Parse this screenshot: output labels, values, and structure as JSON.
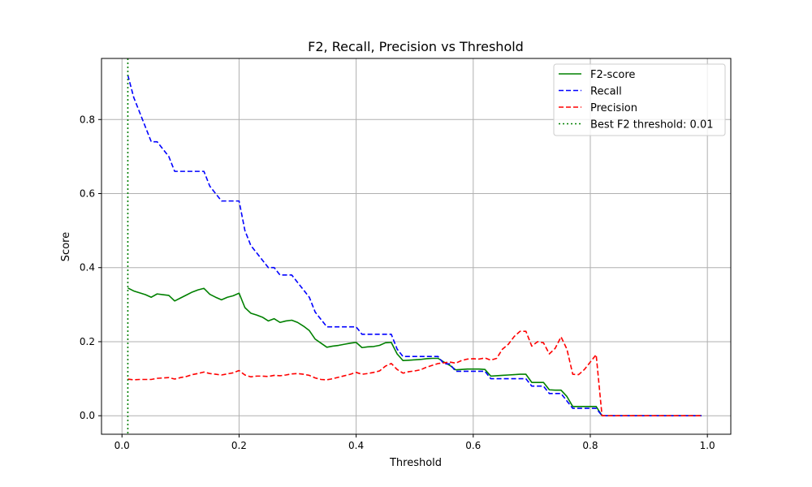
{
  "chart_data": {
    "type": "line",
    "title": "F2, Recall, Precision vs Threshold",
    "xlabel": "Threshold",
    "ylabel": "Score",
    "xlim": [
      -0.035,
      1.04
    ],
    "ylim": [
      -0.05,
      0.965
    ],
    "xticks": [
      0.0,
      0.2,
      0.4,
      0.6,
      0.8,
      1.0
    ],
    "xtick_labels": [
      "0.0",
      "0.2",
      "0.4",
      "0.6",
      "0.8",
      "1.0"
    ],
    "yticks": [
      0.0,
      0.2,
      0.4,
      0.6,
      0.8
    ],
    "ytick_labels": [
      "0.0",
      "0.2",
      "0.4",
      "0.6",
      "0.8"
    ],
    "grid": true,
    "legend_position": "top-right",
    "x": [
      0.01,
      0.02,
      0.03,
      0.04,
      0.05,
      0.06,
      0.07,
      0.08,
      0.09,
      0.1,
      0.11,
      0.12,
      0.13,
      0.14,
      0.15,
      0.16,
      0.17,
      0.18,
      0.19,
      0.2,
      0.21,
      0.22,
      0.23,
      0.24,
      0.25,
      0.26,
      0.27,
      0.28,
      0.29,
      0.3,
      0.31,
      0.32,
      0.33,
      0.34,
      0.35,
      0.36,
      0.37,
      0.38,
      0.39,
      0.4,
      0.41,
      0.42,
      0.43,
      0.44,
      0.45,
      0.46,
      0.47,
      0.48,
      0.49,
      0.5,
      0.51,
      0.52,
      0.53,
      0.54,
      0.55,
      0.56,
      0.57,
      0.58,
      0.59,
      0.6,
      0.61,
      0.62,
      0.63,
      0.64,
      0.65,
      0.66,
      0.67,
      0.68,
      0.69,
      0.7,
      0.71,
      0.72,
      0.73,
      0.74,
      0.75,
      0.76,
      0.77,
      0.78,
      0.79,
      0.8,
      0.81,
      0.82,
      0.83,
      0.84,
      0.85,
      0.86,
      0.87,
      0.88,
      0.89,
      0.9,
      0.91,
      0.92,
      0.93,
      0.94,
      0.95,
      0.96,
      0.97,
      0.98,
      0.99
    ],
    "series": [
      {
        "name": "F2-score",
        "color": "#008000",
        "style": "solid",
        "values": [
          0.345,
          0.337,
          0.332,
          0.327,
          0.32,
          0.329,
          0.327,
          0.325,
          0.31,
          0.318,
          0.326,
          0.334,
          0.34,
          0.344,
          0.328,
          0.32,
          0.313,
          0.32,
          0.324,
          0.331,
          0.292,
          0.277,
          0.272,
          0.266,
          0.256,
          0.262,
          0.252,
          0.256,
          0.258,
          0.252,
          0.242,
          0.23,
          0.207,
          0.196,
          0.185,
          0.188,
          0.19,
          0.193,
          0.196,
          0.198,
          0.184,
          0.186,
          0.187,
          0.19,
          0.197,
          0.198,
          0.167,
          0.149,
          0.15,
          0.151,
          0.152,
          0.154,
          0.155,
          0.155,
          0.145,
          0.136,
          0.124,
          0.125,
          0.126,
          0.126,
          0.126,
          0.125,
          0.107,
          0.108,
          0.109,
          0.11,
          0.111,
          0.112,
          0.112,
          0.09,
          0.09,
          0.09,
          0.07,
          0.069,
          0.069,
          0.052,
          0.025,
          0.025,
          0.025,
          0.025,
          0.025,
          0.0,
          0.0,
          0.0,
          0.0,
          0.0,
          0.0,
          0.0,
          0.0,
          0.0,
          0.0,
          0.0,
          0.0,
          0.0,
          0.0,
          0.0,
          0.0,
          0.0,
          0.0
        ]
      },
      {
        "name": "Recall",
        "color": "#0000ff",
        "style": "dashed",
        "values": [
          0.92,
          0.86,
          0.82,
          0.78,
          0.74,
          0.74,
          0.72,
          0.7,
          0.66,
          0.66,
          0.66,
          0.66,
          0.66,
          0.66,
          0.62,
          0.6,
          0.58,
          0.58,
          0.58,
          0.58,
          0.5,
          0.46,
          0.44,
          0.42,
          0.4,
          0.4,
          0.38,
          0.38,
          0.38,
          0.36,
          0.34,
          0.32,
          0.28,
          0.26,
          0.24,
          0.24,
          0.24,
          0.24,
          0.24,
          0.24,
          0.22,
          0.22,
          0.22,
          0.22,
          0.22,
          0.22,
          0.18,
          0.16,
          0.16,
          0.16,
          0.16,
          0.16,
          0.16,
          0.16,
          0.14,
          0.14,
          0.12,
          0.12,
          0.12,
          0.12,
          0.12,
          0.12,
          0.1,
          0.1,
          0.1,
          0.1,
          0.1,
          0.1,
          0.1,
          0.08,
          0.08,
          0.08,
          0.06,
          0.06,
          0.06,
          0.04,
          0.02,
          0.02,
          0.02,
          0.02,
          0.02,
          0.0,
          0.0,
          0.0,
          0.0,
          0.0,
          0.0,
          0.0,
          0.0,
          0.0,
          0.0,
          0.0,
          0.0,
          0.0,
          0.0,
          0.0,
          0.0,
          0.0,
          0.0
        ]
      },
      {
        "name": "Precision",
        "color": "#ff0000",
        "style": "dashed",
        "values": [
          0.099,
          0.097,
          0.098,
          0.098,
          0.098,
          0.101,
          0.102,
          0.103,
          0.099,
          0.103,
          0.106,
          0.111,
          0.114,
          0.118,
          0.114,
          0.112,
          0.11,
          0.113,
          0.116,
          0.122,
          0.11,
          0.105,
          0.107,
          0.107,
          0.106,
          0.109,
          0.108,
          0.11,
          0.113,
          0.114,
          0.112,
          0.109,
          0.102,
          0.098,
          0.097,
          0.1,
          0.104,
          0.108,
          0.112,
          0.117,
          0.112,
          0.114,
          0.117,
          0.121,
          0.134,
          0.141,
          0.125,
          0.115,
          0.119,
          0.121,
          0.124,
          0.131,
          0.136,
          0.141,
          0.143,
          0.145,
          0.142,
          0.149,
          0.153,
          0.154,
          0.153,
          0.156,
          0.15,
          0.155,
          0.18,
          0.193,
          0.214,
          0.228,
          0.228,
          0.188,
          0.2,
          0.197,
          0.167,
          0.182,
          0.213,
          0.18,
          0.112,
          0.111,
          0.125,
          0.145,
          0.165,
          0.0,
          0.0,
          0.0,
          0.0,
          0.0,
          0.0,
          0.0,
          0.0,
          0.0,
          0.0,
          0.0,
          0.0,
          0.0,
          0.0,
          0.0,
          0.0,
          0.0,
          0.0
        ]
      }
    ],
    "vline": {
      "name": "Best F2 threshold: 0.01",
      "x": 0.01,
      "color": "#008000",
      "style": "dotted"
    }
  }
}
